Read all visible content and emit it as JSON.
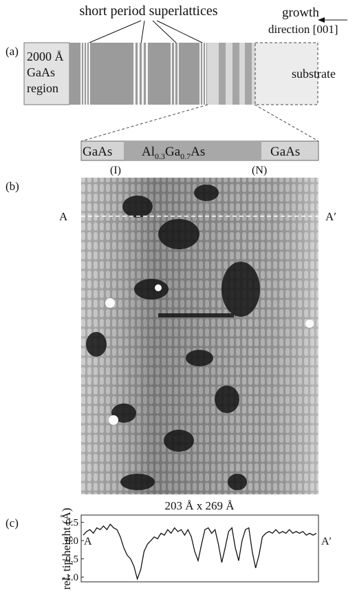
{
  "panel_a": {
    "label": "(a)",
    "spsl": "short period superlattices",
    "growth_1": "growth",
    "growth_2": "direction [001]",
    "region_1": "2000 Å",
    "region_2": "GaAs",
    "region_3": "region",
    "substrate": "substrate"
  },
  "zoom": {
    "left": "GaAs",
    "middle_parts": [
      "Al",
      "0.3",
      "Ga",
      "0.7",
      "As"
    ],
    "right": "GaAs",
    "left_mark": "(I)",
    "right_mark": "(N)"
  },
  "panel_b": {
    "label": "(b)",
    "a_left": "A",
    "a_right": "A′",
    "size": "203 Å x 269 Å"
  },
  "chart_data": {
    "type": "line",
    "panel": "(c)",
    "ylabel": "rel. tip height (Å)",
    "start": "A",
    "end": "A′",
    "ylim": [
      -1.13,
      0.7
    ],
    "yticks": [
      {
        "value": 0.5,
        "label": "0.5"
      },
      {
        "value": 0,
        "label": "0.0"
      },
      {
        "value": -0.5,
        "label": "-0.5"
      },
      {
        "value": -1,
        "label": "-1.0"
      }
    ],
    "color": "#111111",
    "values": [
      0.15,
      0.25,
      0.3,
      0.2,
      0.35,
      0.3,
      0.4,
      0.3,
      0.45,
      0.35,
      0.3,
      0.1,
      -0.2,
      -0.4,
      -0.5,
      -0.7,
      -1.05,
      -0.8,
      -0.3,
      -0.1,
      0.0,
      0.1,
      0.05,
      0.2,
      0.15,
      0.3,
      0.2,
      0.35,
      0.25,
      0.3,
      0.15,
      0.3,
      0.1,
      -0.3,
      -0.55,
      -0.1,
      0.3,
      0.35,
      0.2,
      0.3,
      -0.1,
      -0.6,
      -0.2,
      0.25,
      0.35,
      -0.2,
      -0.55,
      0.0,
      0.3,
      0.35,
      -0.3,
      -0.75,
      -0.4,
      0.1,
      0.2,
      0.25,
      0.2,
      0.3,
      0.2,
      0.25,
      0.2,
      0.3,
      0.2,
      0.25,
      0.2,
      0.25,
      0.15,
      0.2,
      0.15,
      0.2
    ]
  }
}
